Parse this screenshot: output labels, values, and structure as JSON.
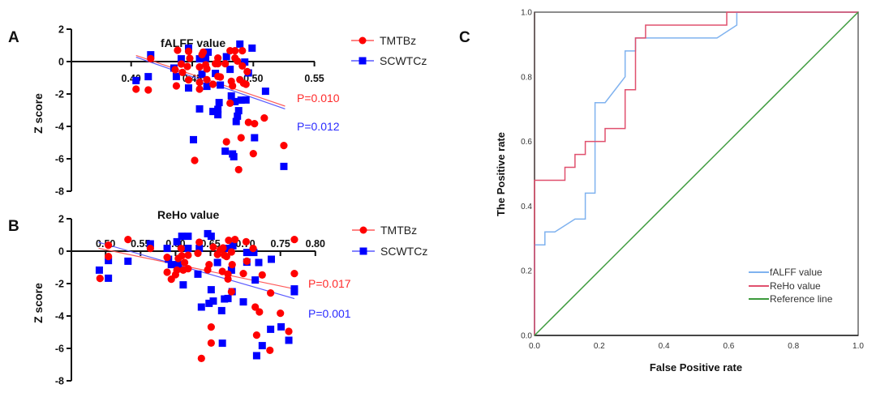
{
  "colors": {
    "tmt": "#ff0000",
    "scwt": "#0000ff",
    "tmt_line": "#ff5a5a",
    "scwt_line": "#5a5aff",
    "roc_falff": "#7fb2ef",
    "roc_reho": "#e0506e",
    "roc_ref": "#3c9a3c",
    "axis": "#111111",
    "roc_frame": "#666666"
  },
  "chart_data": [
    {
      "panel": "A",
      "type": "scatter",
      "title": "fALFF value",
      "xlabel": "",
      "ylabel": "Z score",
      "xlim": [
        0.4,
        0.55
      ],
      "ylim": [
        -8,
        2
      ],
      "xticks": [
        "0.40",
        "0.45",
        "0.50",
        "0.55"
      ],
      "xtick_values": [
        0.4,
        0.45,
        0.5,
        0.55
      ],
      "yticks": [
        "2",
        "0",
        "-2",
        "-4",
        "-6",
        "-8"
      ],
      "ytick_values": [
        2,
        0,
        -2,
        -4,
        -6,
        -8
      ],
      "legend_position": "top-right",
      "series": [
        {
          "name": "TMTBz",
          "marker": "circle",
          "points": [
            [
              0.404,
              -1.7
            ],
            [
              0.414,
              -1.75
            ],
            [
              0.416,
              0.18
            ],
            [
              0.438,
              0.7
            ],
            [
              0.436,
              -0.5
            ],
            [
              0.437,
              -1.5
            ],
            [
              0.441,
              -0.15
            ],
            [
              0.442,
              -0.67
            ],
            [
              0.447,
              0.63
            ],
            [
              0.448,
              0.2
            ],
            [
              0.446,
              -0.3
            ],
            [
              0.447,
              -1.13
            ],
            [
              0.452,
              -6.1
            ],
            [
              0.456,
              -1.28
            ],
            [
              0.456,
              -1.7
            ],
            [
              0.456,
              -0.33
            ],
            [
              0.458,
              0.43
            ],
            [
              0.459,
              0.58
            ],
            [
              0.461,
              -0.2
            ],
            [
              0.462,
              -0.45
            ],
            [
              0.462,
              -1.12
            ],
            [
              0.467,
              -1.4
            ],
            [
              0.469,
              -0.13
            ],
            [
              0.471,
              0.22
            ],
            [
              0.471,
              -0.13
            ],
            [
              0.471,
              -0.92
            ],
            [
              0.473,
              -0.95
            ],
            [
              0.477,
              -0.13
            ],
            [
              0.478,
              -4.95
            ],
            [
              0.481,
              0.67
            ],
            [
              0.482,
              -1.22
            ],
            [
              0.481,
              -2.57
            ],
            [
              0.483,
              -1.5
            ],
            [
              0.485,
              0.67
            ],
            [
              0.485,
              0.22
            ],
            [
              0.487,
              0.03
            ],
            [
              0.488,
              -6.67
            ],
            [
              0.489,
              -1.12
            ],
            [
              0.49,
              -4.7
            ],
            [
              0.491,
              0.67
            ],
            [
              0.491,
              -0.27
            ],
            [
              0.492,
              -1.33
            ],
            [
              0.494,
              -1.4
            ],
            [
              0.495,
              -0.62
            ],
            [
              0.496,
              -3.75
            ],
            [
              0.5,
              -5.68
            ],
            [
              0.501,
              -3.83
            ],
            [
              0.509,
              -3.48
            ],
            [
              0.525,
              -5.18
            ]
          ],
          "fit": [
            [
              0.404,
              0.38
            ],
            [
              0.526,
              -2.75
            ]
          ],
          "p_label": "P=0.010"
        },
        {
          "name": "SCWTCz",
          "marker": "square",
          "points": [
            [
              0.404,
              -1.17
            ],
            [
              0.414,
              -0.93
            ],
            [
              0.416,
              0.42
            ],
            [
              0.435,
              -0.4
            ],
            [
              0.437,
              -0.92
            ],
            [
              0.441,
              0.17
            ],
            [
              0.447,
              0.83
            ],
            [
              0.447,
              -1.63
            ],
            [
              0.451,
              -4.82
            ],
            [
              0.456,
              -2.92
            ],
            [
              0.456,
              0.17
            ],
            [
              0.458,
              -0.78
            ],
            [
              0.461,
              0.22
            ],
            [
              0.462,
              -1.53
            ],
            [
              0.463,
              0.58
            ],
            [
              0.467,
              -3.08
            ],
            [
              0.469,
              -0.73
            ],
            [
              0.471,
              -3.28
            ],
            [
              0.471,
              -2.95
            ],
            [
              0.472,
              -2.53
            ],
            [
              0.473,
              -1.45
            ],
            [
              0.477,
              -5.53
            ],
            [
              0.478,
              0.3
            ],
            [
              0.481,
              -0.48
            ],
            [
              0.482,
              -2.12
            ],
            [
              0.483,
              -5.7
            ],
            [
              0.484,
              -5.87
            ],
            [
              0.485,
              -2.47
            ],
            [
              0.486,
              -3.7
            ],
            [
              0.487,
              -3.37
            ],
            [
              0.488,
              -3.03
            ],
            [
              0.489,
              1.08
            ],
            [
              0.49,
              -2.38
            ],
            [
              0.493,
              -0.03
            ],
            [
              0.494,
              -2.37
            ],
            [
              0.496,
              -0.7
            ],
            [
              0.499,
              0.83
            ],
            [
              0.501,
              -4.7
            ],
            [
              0.51,
              -1.83
            ],
            [
              0.525,
              -6.47
            ]
          ],
          "fit": [
            [
              0.404,
              0.27
            ],
            [
              0.526,
              -2.92
            ]
          ],
          "p_label": "P=0.012"
        }
      ]
    },
    {
      "panel": "B",
      "type": "scatter",
      "title": "ReHo value",
      "xlabel": "",
      "ylabel": "Z score",
      "xlim": [
        0.5,
        0.8
      ],
      "ylim": [
        -8,
        2
      ],
      "xticks": [
        "0.50",
        "0.55",
        "0.60",
        "0.65",
        "0.70",
        "0.75",
        "0.80"
      ],
      "xtick_values": [
        0.5,
        0.55,
        0.6,
        0.65,
        0.7,
        0.75,
        0.8
      ],
      "yticks": [
        "2",
        "0",
        "-2",
        "-4",
        "-6",
        "-8"
      ],
      "ytick_values": [
        2,
        0,
        -2,
        -4,
        -6,
        -8
      ],
      "legend_position": "top-right",
      "series": [
        {
          "name": "TMTBz",
          "marker": "circle",
          "points": [
            [
              0.492,
              -1.68
            ],
            [
              0.504,
              0.37
            ],
            [
              0.504,
              -0.33
            ],
            [
              0.532,
              0.72
            ],
            [
              0.564,
              0.17
            ],
            [
              0.588,
              -0.38
            ],
            [
              0.588,
              -1.3
            ],
            [
              0.594,
              -1.73
            ],
            [
              0.6,
              -1.45
            ],
            [
              0.602,
              -1.17
            ],
            [
              0.604,
              -0.45
            ],
            [
              0.608,
              0.17
            ],
            [
              0.609,
              -0.28
            ],
            [
              0.611,
              -1.17
            ],
            [
              0.613,
              -0.7
            ],
            [
              0.618,
              -0.25
            ],
            [
              0.618,
              -1.08
            ],
            [
              0.632,
              -0.13
            ],
            [
              0.634,
              0.55
            ],
            [
              0.637,
              -6.62
            ],
            [
              0.646,
              -1.15
            ],
            [
              0.648,
              -0.83
            ],
            [
              0.651,
              -4.68
            ],
            [
              0.651,
              -5.67
            ],
            [
              0.654,
              0.25
            ],
            [
              0.66,
              -0.2
            ],
            [
              0.664,
              0.08
            ],
            [
              0.668,
              0.2
            ],
            [
              0.667,
              -1.25
            ],
            [
              0.67,
              -0.25
            ],
            [
              0.673,
              -0.33
            ],
            [
              0.675,
              -1.42
            ],
            [
              0.676,
              0.67
            ],
            [
              0.675,
              -1.72
            ],
            [
              0.68,
              -2.5
            ],
            [
              0.68,
              -0.05
            ],
            [
              0.681,
              -0.83
            ],
            [
              0.685,
              0.72
            ],
            [
              0.697,
              -1.38
            ],
            [
              0.701,
              0.58
            ],
            [
              0.702,
              -0.62
            ],
            [
              0.711,
              0.17
            ],
            [
              0.714,
              -3.45
            ],
            [
              0.716,
              -5.18
            ],
            [
              0.72,
              -3.75
            ],
            [
              0.724,
              -1.47
            ],
            [
              0.736,
              -2.58
            ],
            [
              0.735,
              -6.12
            ],
            [
              0.75,
              -3.83
            ],
            [
              0.762,
              -4.95
            ],
            [
              0.77,
              0.72
            ],
            [
              0.77,
              -1.38
            ]
          ],
          "fit": [
            [
              0.49,
              0.18
            ],
            [
              0.77,
              -2.33
            ]
          ],
          "p_label": "P=0.017"
        },
        {
          "name": "SCWTCz",
          "marker": "square",
          "points": [
            [
              0.491,
              -1.17
            ],
            [
              0.504,
              -0.58
            ],
            [
              0.504,
              -1.67
            ],
            [
              0.532,
              -0.62
            ],
            [
              0.564,
              0.45
            ],
            [
              0.588,
              0.17
            ],
            [
              0.59,
              -0.5
            ],
            [
              0.594,
              -0.83
            ],
            [
              0.602,
              0.58
            ],
            [
              0.604,
              -0.83
            ],
            [
              0.609,
              0.92
            ],
            [
              0.611,
              -2.08
            ],
            [
              0.618,
              0.92
            ],
            [
              0.618,
              0.17
            ],
            [
              0.632,
              -1.42
            ],
            [
              0.634,
              0.17
            ],
            [
              0.637,
              -3.45
            ],
            [
              0.646,
              1.08
            ],
            [
              0.648,
              -3.22
            ],
            [
              0.651,
              0.92
            ],
            [
              0.651,
              -2.38
            ],
            [
              0.654,
              -3.08
            ],
            [
              0.66,
              -0.7
            ],
            [
              0.666,
              -3.67
            ],
            [
              0.667,
              -5.68
            ],
            [
              0.67,
              -2.95
            ],
            [
              0.675,
              -2.92
            ],
            [
              0.68,
              -1.17
            ],
            [
              0.681,
              -2.5
            ],
            [
              0.676,
              0.17
            ],
            [
              0.682,
              0.33
            ],
            [
              0.697,
              -3.13
            ],
            [
              0.702,
              -0.08
            ],
            [
              0.702,
              -0.68
            ],
            [
              0.712,
              -0.08
            ],
            [
              0.714,
              -1.78
            ],
            [
              0.716,
              -6.45
            ],
            [
              0.719,
              -0.7
            ],
            [
              0.724,
              -5.83
            ],
            [
              0.736,
              -4.82
            ],
            [
              0.737,
              -0.5
            ],
            [
              0.751,
              -4.67
            ],
            [
              0.762,
              -5.5
            ],
            [
              0.77,
              -2.33
            ],
            [
              0.77,
              -2.5
            ]
          ],
          "fit": [
            [
              0.49,
              0.55
            ],
            [
              0.77,
              -2.93
            ]
          ],
          "p_label": "P=0.001"
        }
      ]
    },
    {
      "panel": "C",
      "type": "line",
      "title": "",
      "xlabel": "False Positive rate",
      "ylabel": "The Positive rate",
      "xlim": [
        0,
        1
      ],
      "ylim": [
        0,
        1
      ],
      "xticks": [
        "0.0",
        "0.2",
        "0.4",
        "0.6",
        "0.8",
        "1.0"
      ],
      "xtick_values": [
        0,
        0.2,
        0.4,
        0.6,
        0.8,
        1.0
      ],
      "yticks": [
        "0.0",
        "0.2",
        "0.4",
        "0.6",
        "0.8",
        "1.0"
      ],
      "ytick_values": [
        0,
        0.2,
        0.4,
        0.6,
        0.8,
        1.0
      ],
      "legend_position": "bottom-right",
      "series": [
        {
          "name": "fALFF value",
          "color_key": "roc_falff",
          "points": [
            [
              0,
              0
            ],
            [
              0,
              0.28
            ],
            [
              0.032,
              0.28
            ],
            [
              0.032,
              0.32
            ],
            [
              0.063,
              0.32
            ],
            [
              0.125,
              0.36
            ],
            [
              0.157,
              0.36
            ],
            [
              0.157,
              0.44
            ],
            [
              0.187,
              0.44
            ],
            [
              0.187,
              0.72
            ],
            [
              0.218,
              0.72
            ],
            [
              0.28,
              0.8
            ],
            [
              0.28,
              0.88
            ],
            [
              0.312,
              0.88
            ],
            [
              0.312,
              0.92
            ],
            [
              0.564,
              0.92
            ],
            [
              0.625,
              0.96
            ],
            [
              0.625,
              1.0
            ],
            [
              1.0,
              1.0
            ]
          ]
        },
        {
          "name": "ReHo value",
          "color_key": "roc_reho",
          "points": [
            [
              0,
              0
            ],
            [
              0,
              0.48
            ],
            [
              0.094,
              0.48
            ],
            [
              0.094,
              0.52
            ],
            [
              0.125,
              0.52
            ],
            [
              0.125,
              0.56
            ],
            [
              0.157,
              0.56
            ],
            [
              0.157,
              0.6
            ],
            [
              0.218,
              0.6
            ],
            [
              0.218,
              0.64
            ],
            [
              0.28,
              0.64
            ],
            [
              0.28,
              0.76
            ],
            [
              0.312,
              0.76
            ],
            [
              0.312,
              0.92
            ],
            [
              0.343,
              0.92
            ],
            [
              0.343,
              0.96
            ],
            [
              0.594,
              0.96
            ],
            [
              0.594,
              1.0
            ],
            [
              1.0,
              1.0
            ]
          ]
        },
        {
          "name": "Reference line",
          "color_key": "roc_ref",
          "points": [
            [
              0,
              0
            ],
            [
              1,
              1
            ]
          ]
        }
      ]
    }
  ]
}
